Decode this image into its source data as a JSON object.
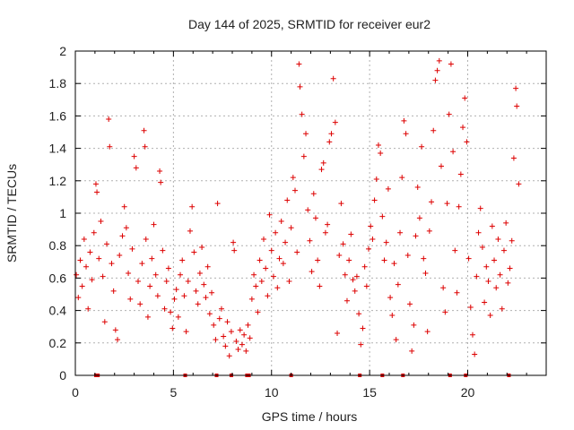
{
  "chart_data": {
    "type": "scatter",
    "title": "Day 144 of 2025, SRMTID for receiver eur2",
    "xlabel": "GPS time / hours",
    "ylabel": "SRMTID / TECUs",
    "xlim": [
      0,
      24
    ],
    "ylim": [
      0,
      2
    ],
    "x_ticks": [
      0,
      5,
      10,
      15,
      20
    ],
    "x_tick_labels": [
      "0",
      "5",
      "10",
      "15",
      "20"
    ],
    "y_ticks": [
      0,
      0.2,
      0.4,
      0.6,
      0.8,
      1,
      1.2,
      1.4,
      1.6,
      1.8,
      2
    ],
    "y_tick_labels": [
      "0",
      "0.2",
      "0.4",
      "0.6",
      "0.8",
      "1",
      "1.2",
      "1.4",
      "1.6",
      "1.8",
      "2"
    ],
    "grid": true,
    "marker": "+",
    "colors": {
      "series": "#dd0000",
      "grid": "#b0b0b0",
      "axis": "#000000"
    },
    "series": [
      {
        "name": "SRMTID",
        "points": [
          [
            0.05,
            0.62
          ],
          [
            0.15,
            0.48
          ],
          [
            0.25,
            0.71
          ],
          [
            0.35,
            0.55
          ],
          [
            0.45,
            0.84
          ],
          [
            0.55,
            0.67
          ],
          [
            0.65,
            0.41
          ],
          [
            0.75,
            0.76
          ],
          [
            0.85,
            0.59
          ],
          [
            0.95,
            0.88
          ],
          [
            1.05,
            1.18
          ],
          [
            1.1,
            1.13
          ],
          [
            1.2,
            0.72
          ],
          [
            1.3,
            0.95
          ],
          [
            1.4,
            0.61
          ],
          [
            1.5,
            0.33
          ],
          [
            1.6,
            0.81
          ],
          [
            1.7,
            1.58
          ],
          [
            1.75,
            1.41
          ],
          [
            1.85,
            0.69
          ],
          [
            1.95,
            0.52
          ],
          [
            2.05,
            0.28
          ],
          [
            2.15,
            0.22
          ],
          [
            2.25,
            0.74
          ],
          [
            2.4,
            0.86
          ],
          [
            2.5,
            1.04
          ],
          [
            2.6,
            0.91
          ],
          [
            2.7,
            0.63
          ],
          [
            2.8,
            0.47
          ],
          [
            2.9,
            0.78
          ],
          [
            3.0,
            1.35
          ],
          [
            3.1,
            1.28
          ],
          [
            3.2,
            0.58
          ],
          [
            3.3,
            0.44
          ],
          [
            3.4,
            0.69
          ],
          [
            3.5,
            1.51
          ],
          [
            3.55,
            1.41
          ],
          [
            3.6,
            0.84
          ],
          [
            3.7,
            0.36
          ],
          [
            3.8,
            0.55
          ],
          [
            3.9,
            0.72
          ],
          [
            4.0,
            0.93
          ],
          [
            4.1,
            0.62
          ],
          [
            4.2,
            0.49
          ],
          [
            4.3,
            1.26
          ],
          [
            4.35,
            1.19
          ],
          [
            4.45,
            0.77
          ],
          [
            4.55,
            0.41
          ],
          [
            4.65,
            0.58
          ],
          [
            4.75,
            0.66
          ],
          [
            4.85,
            0.39
          ],
          [
            4.95,
            0.29
          ],
          [
            5.05,
            0.47
          ],
          [
            5.15,
            0.53
          ],
          [
            5.25,
            0.36
          ],
          [
            5.35,
            0.62
          ],
          [
            5.45,
            0.71
          ],
          [
            5.55,
            0.49
          ],
          [
            5.65,
            0.27
          ],
          [
            5.75,
            0.58
          ],
          [
            5.85,
            0.89
          ],
          [
            5.95,
            1.04
          ],
          [
            6.05,
            0.76
          ],
          [
            6.15,
            0.52
          ],
          [
            6.25,
            0.44
          ],
          [
            6.35,
            0.63
          ],
          [
            6.45,
            0.79
          ],
          [
            6.55,
            0.56
          ],
          [
            6.65,
            0.48
          ],
          [
            6.75,
            0.67
          ],
          [
            6.85,
            0.38
          ],
          [
            6.95,
            0.51
          ],
          [
            7.05,
            0.31
          ],
          [
            7.15,
            0.22
          ],
          [
            7.25,
            1.06
          ],
          [
            7.35,
            0.35
          ],
          [
            7.45,
            0.41
          ],
          [
            7.55,
            0.24
          ],
          [
            7.65,
            0.18
          ],
          [
            7.75,
            0.33
          ],
          [
            7.85,
            0.12
          ],
          [
            7.95,
            0.27
          ],
          [
            8.05,
            0.82
          ],
          [
            8.1,
            0.77
          ],
          [
            8.2,
            0.21
          ],
          [
            8.3,
            0.16
          ],
          [
            8.4,
            0.28
          ],
          [
            8.5,
            0.19
          ],
          [
            8.6,
            0.25
          ],
          [
            8.7,
            0.15
          ],
          [
            8.8,
            0.31
          ],
          [
            8.9,
            0.23
          ],
          [
            9.0,
            0.47
          ],
          [
            9.1,
            0.62
          ],
          [
            9.2,
            0.55
          ],
          [
            9.3,
            0.39
          ],
          [
            9.4,
            0.71
          ],
          [
            9.5,
            0.58
          ],
          [
            9.6,
            0.84
          ],
          [
            9.7,
            0.66
          ],
          [
            9.8,
            0.49
          ],
          [
            9.9,
            0.99
          ],
          [
            10.0,
            0.77
          ],
          [
            10.1,
            0.61
          ],
          [
            10.2,
            0.88
          ],
          [
            10.3,
            0.54
          ],
          [
            10.4,
            0.72
          ],
          [
            10.5,
            0.95
          ],
          [
            10.6,
            0.69
          ],
          [
            10.7,
            0.82
          ],
          [
            10.8,
            1.08
          ],
          [
            10.9,
            0.58
          ],
          [
            11.0,
            0.91
          ],
          [
            11.1,
            1.22
          ],
          [
            11.2,
            1.14
          ],
          [
            11.3,
            0.76
          ],
          [
            11.4,
            1.92
          ],
          [
            11.45,
            1.78
          ],
          [
            11.55,
            1.61
          ],
          [
            11.65,
            1.35
          ],
          [
            11.75,
            1.49
          ],
          [
            11.85,
            1.02
          ],
          [
            11.95,
            0.83
          ],
          [
            12.05,
            0.64
          ],
          [
            12.15,
            1.12
          ],
          [
            12.25,
            0.97
          ],
          [
            12.35,
            0.71
          ],
          [
            12.45,
            0.55
          ],
          [
            12.55,
            1.27
          ],
          [
            12.65,
            1.31
          ],
          [
            12.75,
            0.88
          ],
          [
            12.85,
            0.93
          ],
          [
            12.95,
            1.44
          ],
          [
            13.05,
            1.49
          ],
          [
            13.15,
            1.83
          ],
          [
            13.25,
            1.56
          ],
          [
            13.35,
            0.26
          ],
          [
            13.45,
            0.74
          ],
          [
            13.55,
            1.06
          ],
          [
            13.65,
            0.81
          ],
          [
            13.75,
            0.62
          ],
          [
            13.85,
            0.46
          ],
          [
            13.95,
            0.71
          ],
          [
            14.05,
            0.87
          ],
          [
            14.15,
            0.59
          ],
          [
            14.25,
            0.52
          ],
          [
            14.35,
            0.61
          ],
          [
            14.45,
            0.38
          ],
          [
            14.55,
            0.19
          ],
          [
            14.65,
            0.29
          ],
          [
            14.75,
            0.67
          ],
          [
            14.85,
            0.55
          ],
          [
            14.95,
            0.78
          ],
          [
            15.05,
            0.92
          ],
          [
            15.15,
            0.84
          ],
          [
            15.25,
            1.08
          ],
          [
            15.35,
            1.21
          ],
          [
            15.45,
            1.42
          ],
          [
            15.55,
            1.37
          ],
          [
            15.65,
            0.98
          ],
          [
            15.75,
            0.71
          ],
          [
            15.85,
            0.82
          ],
          [
            15.95,
            1.15
          ],
          [
            16.05,
            0.48
          ],
          [
            16.15,
            0.37
          ],
          [
            16.25,
            0.69
          ],
          [
            16.35,
            0.22
          ],
          [
            16.45,
            0.56
          ],
          [
            16.55,
            0.88
          ],
          [
            16.65,
            1.22
          ],
          [
            16.75,
            1.57
          ],
          [
            16.85,
            1.49
          ],
          [
            16.95,
            0.74
          ],
          [
            17.05,
            0.44
          ],
          [
            17.15,
            0.15
          ],
          [
            17.25,
            0.31
          ],
          [
            17.35,
            0.86
          ],
          [
            17.45,
            1.16
          ],
          [
            17.55,
            0.97
          ],
          [
            17.65,
            1.41
          ],
          [
            17.75,
            0.72
          ],
          [
            17.85,
            0.63
          ],
          [
            17.95,
            0.27
          ],
          [
            18.05,
            0.89
          ],
          [
            18.15,
            1.07
          ],
          [
            18.25,
            1.51
          ],
          [
            18.35,
            1.82
          ],
          [
            18.45,
            1.88
          ],
          [
            18.55,
            1.94
          ],
          [
            18.65,
            1.29
          ],
          [
            18.75,
            0.54
          ],
          [
            18.85,
            0.39
          ],
          [
            18.95,
            1.06
          ],
          [
            19.05,
            1.61
          ],
          [
            19.15,
            1.92
          ],
          [
            19.25,
            1.38
          ],
          [
            19.35,
            0.77
          ],
          [
            19.45,
            0.51
          ],
          [
            19.55,
            1.04
          ],
          [
            19.65,
            1.24
          ],
          [
            19.75,
            1.53
          ],
          [
            19.85,
            1.71
          ],
          [
            19.95,
            1.44
          ],
          [
            20.05,
            0.72
          ],
          [
            20.15,
            0.42
          ],
          [
            20.25,
            0.25
          ],
          [
            20.35,
            0.13
          ],
          [
            20.45,
            0.61
          ],
          [
            20.55,
            0.88
          ],
          [
            20.65,
            1.03
          ],
          [
            20.75,
            0.79
          ],
          [
            20.85,
            0.45
          ],
          [
            20.95,
            0.67
          ],
          [
            21.05,
            0.58
          ],
          [
            21.15,
            0.37
          ],
          [
            21.25,
            0.92
          ],
          [
            21.35,
            0.71
          ],
          [
            21.45,
            0.54
          ],
          [
            21.55,
            0.84
          ],
          [
            21.65,
            0.62
          ],
          [
            21.75,
            0.41
          ],
          [
            21.85,
            0.77
          ],
          [
            21.95,
            0.94
          ],
          [
            22.05,
            0.57
          ],
          [
            22.15,
            0.66
          ],
          [
            22.25,
            0.83
          ],
          [
            22.35,
            1.34
          ],
          [
            22.45,
            1.77
          ],
          [
            22.5,
            1.66
          ],
          [
            22.6,
            1.18
          ]
        ]
      }
    ],
    "gap_markers_x": [
      1.05,
      1.15,
      5.6,
      7.2,
      7.95,
      8.75,
      8.85,
      11.0,
      14.5,
      15.65,
      16.7,
      19.1,
      19.9,
      22.1
    ]
  }
}
